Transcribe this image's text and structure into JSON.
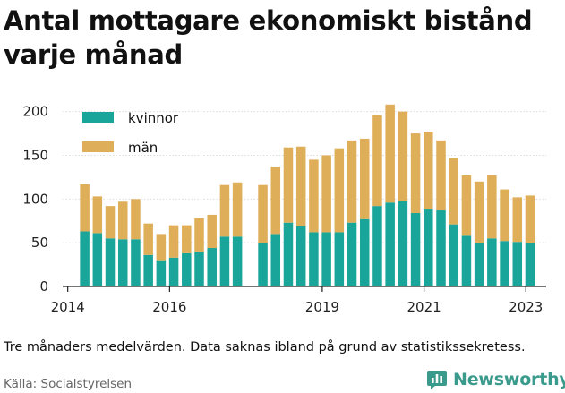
{
  "title": "Antal mottagare ekonomiskt bistånd varje månad",
  "note": "Tre månaders medelvärden. Data saknas ibland på grund av statistikssekretess.",
  "source": "Källa: Socialstyrelsen",
  "brand": "Newsworthy",
  "colors": {
    "kvinnor": "#1aa59a",
    "man": "#dfae59",
    "grid": "#dcdcdc",
    "axis": "#222222",
    "brand": "#3a9a8c"
  },
  "chart_data": {
    "type": "bar",
    "stacked": true,
    "title": "Antal mottagare ekonomiskt bistånd varje månad",
    "xlabel": "",
    "ylabel": "",
    "ylim": [
      0,
      215
    ],
    "yticks": [
      0,
      50,
      100,
      150,
      200
    ],
    "xticks": [
      2014,
      2016,
      2019,
      2021,
      2023
    ],
    "x_axis_range": [
      2013.9,
      2023.4
    ],
    "legend": {
      "placement": "top-left",
      "entries": [
        "kvinnor",
        "män"
      ]
    },
    "grid": true,
    "x": [
      2014.333,
      2014.583,
      2014.833,
      2015.083,
      2015.333,
      2015.583,
      2015.833,
      2016.083,
      2016.333,
      2016.583,
      2016.833,
      2017.083,
      2017.333,
      2017.833,
      2018.083,
      2018.333,
      2018.583,
      2018.833,
      2019.083,
      2019.333,
      2019.583,
      2019.833,
      2020.083,
      2020.333,
      2020.583,
      2020.833,
      2021.083,
      2021.333,
      2021.583,
      2021.833,
      2022.083,
      2022.333,
      2022.583,
      2022.833,
      2023.083
    ],
    "series": [
      {
        "name": "kvinnor",
        "values": [
          63,
          61,
          55,
          54,
          54,
          36,
          30,
          33,
          38,
          40,
          44,
          57,
          57,
          50,
          60,
          73,
          69,
          62,
          62,
          62,
          73,
          77,
          92,
          96,
          98,
          84,
          88,
          87,
          71,
          58,
          50,
          55,
          52,
          51,
          50
        ]
      },
      {
        "name": "män",
        "values": [
          54,
          42,
          37,
          43,
          46,
          36,
          30,
          37,
          32,
          38,
          38,
          59,
          62,
          66,
          77,
          86,
          91,
          83,
          88,
          96,
          94,
          92,
          104,
          112,
          102,
          91,
          89,
          80,
          76,
          69,
          70,
          72,
          59,
          51,
          54
        ]
      }
    ]
  }
}
